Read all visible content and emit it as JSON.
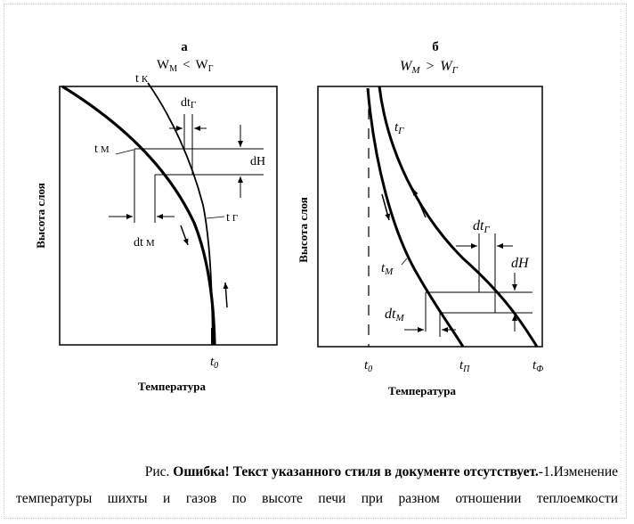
{
  "panel_a": {
    "letter": "а",
    "condition": {
      "wm": "W",
      "wm_sub": "М",
      "op": "<",
      "wg": "W",
      "wg_sub": "Г"
    },
    "ylabel": "Высота слоя",
    "xlabel": "Температура",
    "label_tk": "t",
    "label_tk_sub": "К",
    "label_tm": "t",
    "label_tm_sub": "М",
    "label_tg": "t",
    "label_tg_sub": "Г",
    "label_dtg": "dt",
    "label_dtg_sub": "Г",
    "label_dtm": "dt",
    "label_dtm_sub": "М",
    "label_dh": "dH",
    "label_t0": "t",
    "label_t0_sub": "0"
  },
  "panel_b": {
    "letter": "б",
    "condition": {
      "wm": "W",
      "wm_sub": "М",
      "op": ">",
      "wg": "W",
      "wg_sub": "Г"
    },
    "ylabel": "Высота слоя",
    "xlabel": "Температура",
    "label_tg": "t",
    "label_tg_sub": "Г",
    "label_tm": "t",
    "label_tm_sub": "М",
    "label_dtg": "dt",
    "label_dtg_sub": "Г",
    "label_dtm": "dt",
    "label_dtm_sub": "М",
    "label_dh": "dH",
    "label_t0": "t",
    "label_t0_sub": "0",
    "label_tp": "t",
    "label_tp_sub": "П",
    "label_tf": "t",
    "label_tf_sub": "Ф"
  },
  "caption": {
    "prefix": "Рис. ",
    "error_text": "Ошибка! Текст указанного стиля в документе отсутствует.",
    "suffix": "-1.Изменение",
    "line2": "температуры шихты и газов по высоте печи при разном отношении теплоемкости"
  }
}
